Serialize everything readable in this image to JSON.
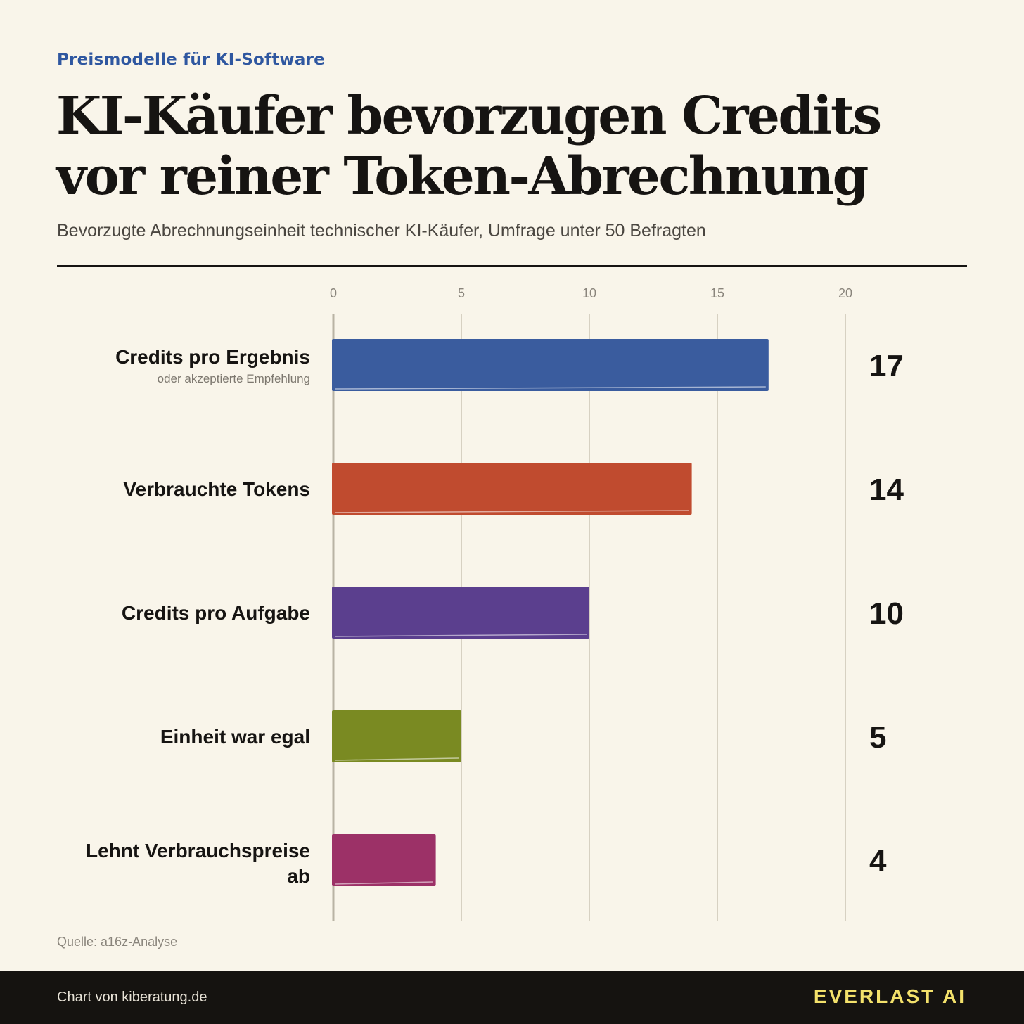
{
  "header": {
    "kicker": "Preismodelle für KI-Software",
    "title_line1": "KI-Käufer bevorzugen Credits",
    "title_line2": "vor reiner Token-Abrechnung",
    "subtitle": "Bevorzugte Abrechnungseinheit technischer KI-Käufer, Umfrage unter 50 Befragten"
  },
  "chart_data": {
    "type": "bar",
    "orientation": "horizontal",
    "title": "KI-Käufer bevorzugen Credits vor reiner Token-Abrechnung",
    "subtitle": "Bevorzugte Abrechnungseinheit technischer KI-Käufer, Umfrage unter 50 Befragten",
    "xlim": [
      0,
      20
    ],
    "xticks": [
      0,
      5,
      10,
      15,
      20
    ],
    "grid": true,
    "legend": "none",
    "categories": [
      "Credits pro Ergebnis",
      "Verbrauchte Tokens",
      "Credits pro Aufgabe",
      "Einheit war egal",
      "Lehnt Verbrauchspreise ab"
    ],
    "category_notes": [
      "oder akzeptierte Empfehlung",
      "",
      "",
      "",
      ""
    ],
    "values": [
      17,
      14,
      10,
      5,
      4
    ],
    "colors": [
      "#3a5c9e",
      "#c04b2f",
      "#5b3f8e",
      "#7a8a22",
      "#9c3167"
    ]
  },
  "footer": {
    "source": "Quelle: a16z-Analyse",
    "credit": "Chart von kiberatung.de",
    "brand": "EVERLAST AI"
  }
}
